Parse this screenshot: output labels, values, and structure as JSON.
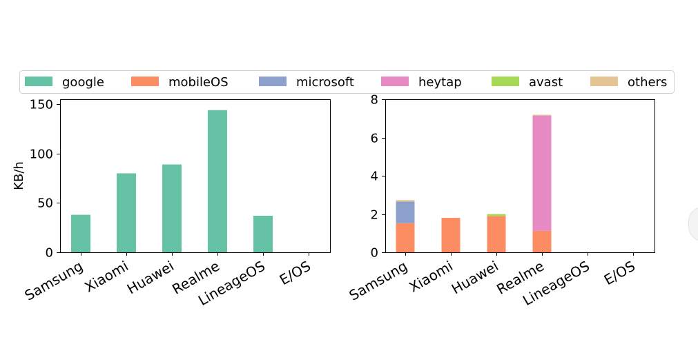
{
  "legend": {
    "entries": [
      {
        "name": "google",
        "color": "#66c2a5"
      },
      {
        "name": "mobileOS",
        "color": "#fc8d62"
      },
      {
        "name": "microsoft",
        "color": "#8da0cb"
      },
      {
        "name": "heytap",
        "color": "#e78ac3"
      },
      {
        "name": "avast",
        "color": "#a6d854"
      },
      {
        "name": "others",
        "color": "#e5c494"
      }
    ],
    "position": "top-center"
  },
  "chart_data": [
    {
      "type": "bar",
      "title": "",
      "xlabel": "",
      "ylabel": "KB/h",
      "categories": [
        "Samsung",
        "Xiaomi",
        "Huawei",
        "Realme",
        "LineageOS",
        "E/OS"
      ],
      "series": [
        {
          "name": "google",
          "color": "#66c2a5",
          "values": [
            38,
            80,
            89,
            144,
            37,
            0
          ]
        }
      ],
      "ylim": [
        0,
        155
      ],
      "yticks": [
        0,
        50,
        100,
        150
      ],
      "grid": false
    },
    {
      "type": "bar",
      "stacked": true,
      "title": "",
      "xlabel": "",
      "ylabel": "",
      "categories": [
        "Samsung",
        "Xiaomi",
        "Huawei",
        "Realme",
        "LineageOS",
        "E/OS"
      ],
      "series": [
        {
          "name": "mobileOS",
          "color": "#fc8d62",
          "values": [
            1.52,
            1.8,
            1.9,
            1.12,
            0,
            0
          ]
        },
        {
          "name": "microsoft",
          "color": "#8da0cb",
          "values": [
            1.13,
            0,
            0,
            0,
            0,
            0
          ]
        },
        {
          "name": "heytap",
          "color": "#e78ac3",
          "values": [
            0,
            0,
            0,
            6.03,
            0,
            0
          ]
        },
        {
          "name": "avast",
          "color": "#a6d854",
          "values": [
            0,
            0,
            0.1,
            0,
            0,
            0
          ]
        },
        {
          "name": "others",
          "color": "#e5c494",
          "values": [
            0.08,
            0,
            0,
            0.04,
            0,
            0
          ]
        }
      ],
      "ylim": [
        0,
        8
      ],
      "yticks": [
        0,
        2,
        4,
        6,
        8
      ],
      "grid": false
    }
  ]
}
